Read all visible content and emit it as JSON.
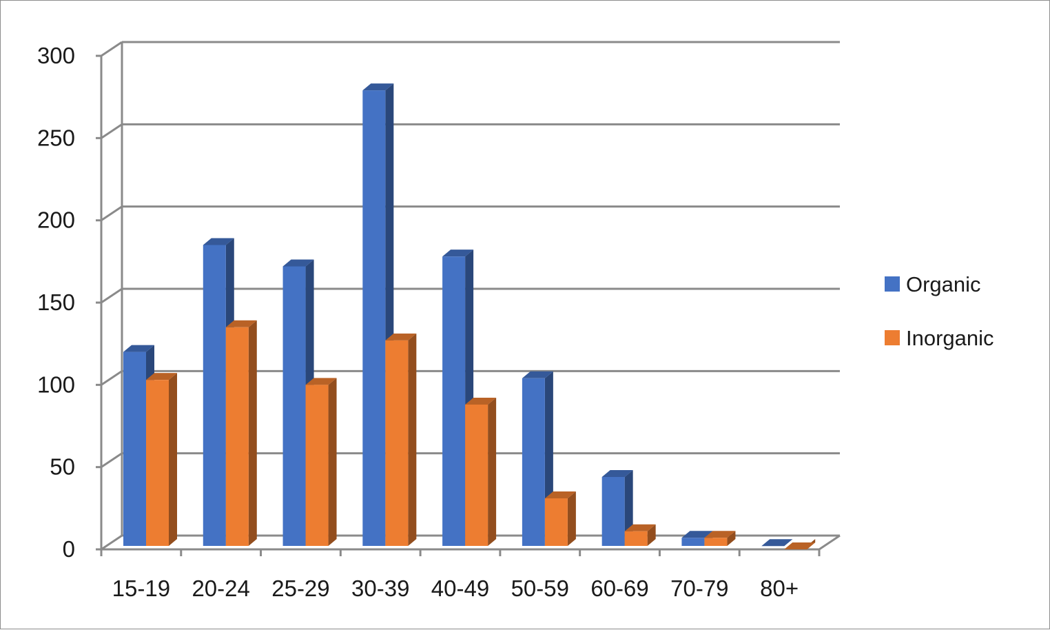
{
  "chart_data": {
    "type": "bar",
    "style": "3d-clustered-column",
    "categories": [
      "15-19",
      "20-24",
      "25-29",
      "30-39",
      "40-49",
      "50-59",
      "60-69",
      "70-79",
      "80+"
    ],
    "series": [
      {
        "name": "Organic",
        "color": "#4472C4",
        "values": [
          120,
          185,
          172,
          279,
          178,
          104,
          44,
          7,
          2
        ]
      },
      {
        "name": "Inorganic",
        "color": "#ED7D31",
        "values": [
          103,
          135,
          100,
          127,
          88,
          31,
          11,
          7,
          0
        ]
      }
    ],
    "ylim": [
      0,
      300
    ],
    "yticks": [
      "0",
      "50",
      "100",
      "150",
      "200",
      "250",
      "300"
    ],
    "grid": true,
    "legend": "right",
    "title": "",
    "xlabel": "",
    "ylabel": ""
  }
}
